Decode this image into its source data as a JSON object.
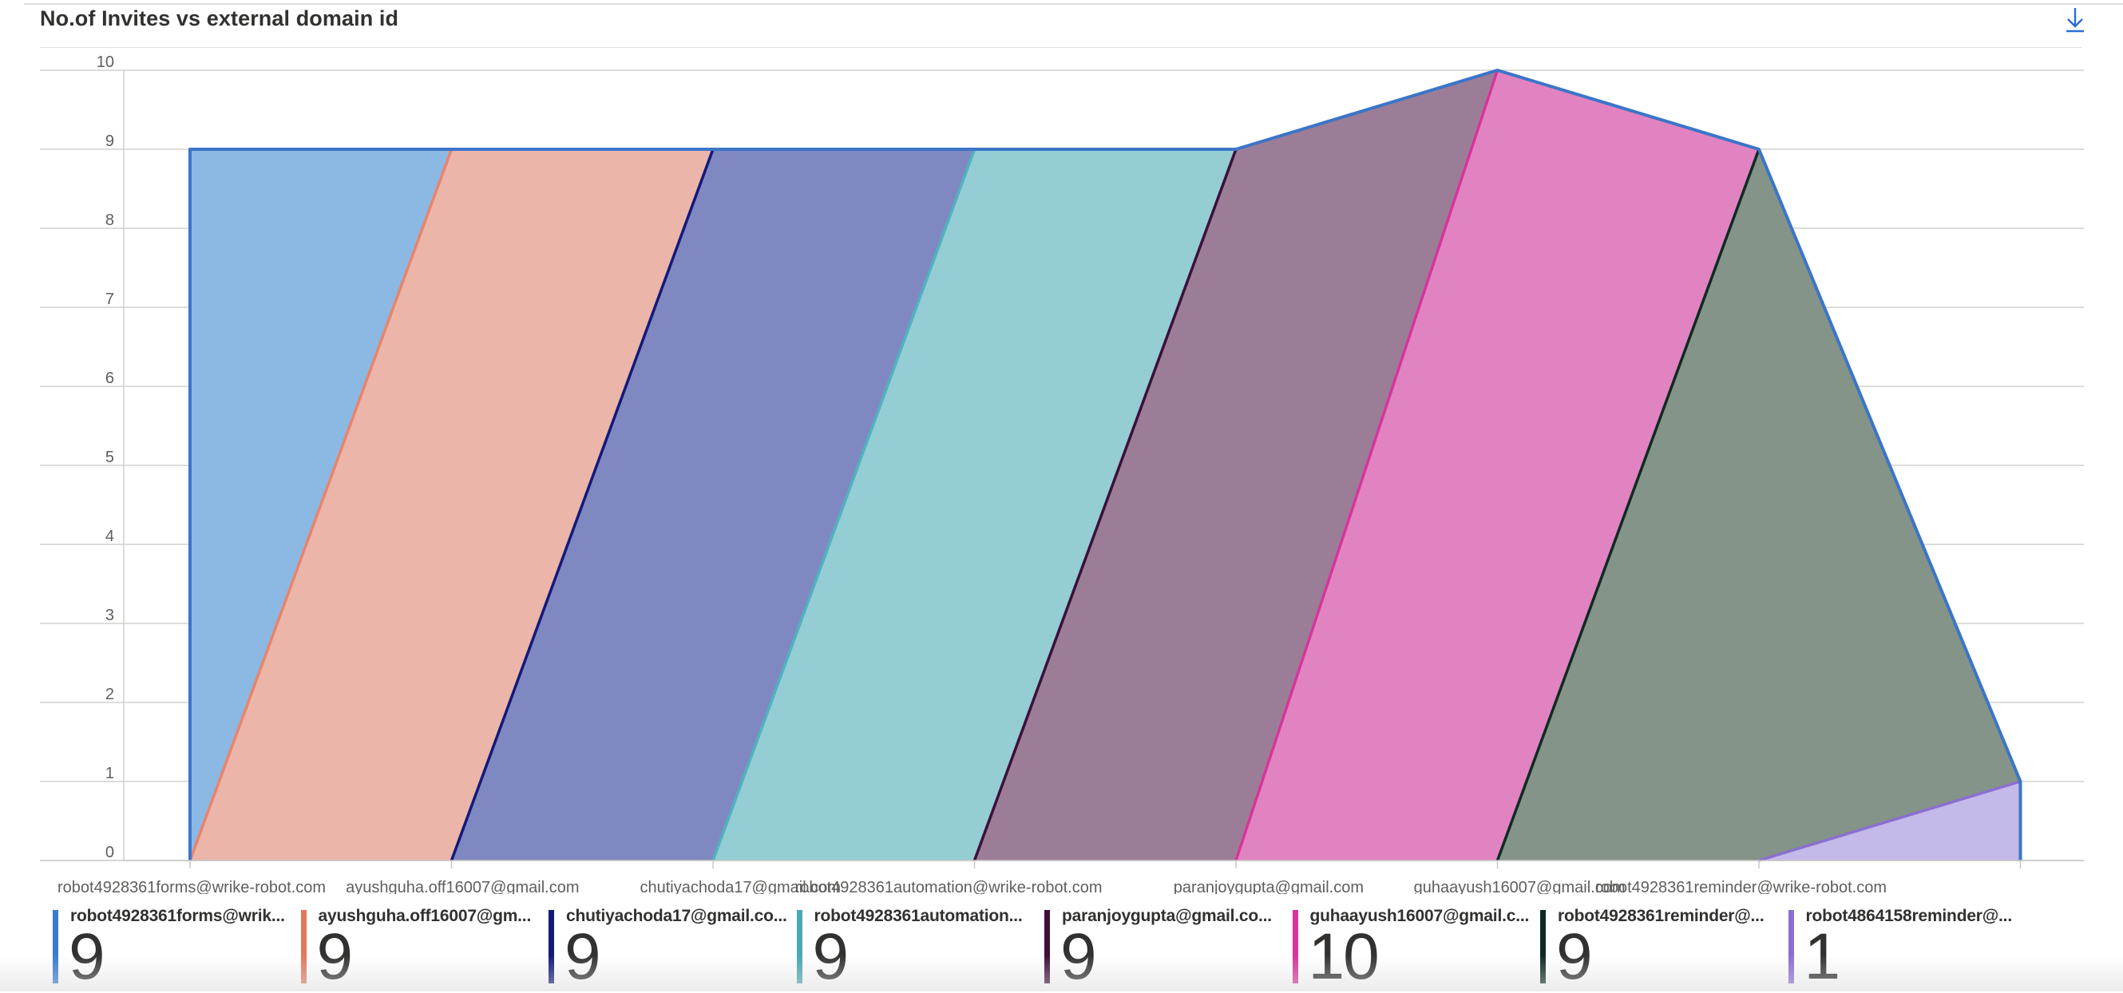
{
  "header": {
    "title": "No.of Invites vs external domain id",
    "download_icon": "download-icon"
  },
  "chart_data": {
    "type": "area",
    "categories": [
      "robot4928361forms@wrike-robot.com",
      "ayushguha.off16007@gmail.com",
      "chutiyachoda17@gmail.com",
      "robot4928361automation@wrike-robot.com",
      "paranjoygupta@gmail.com",
      "guhaayush16007@gmail.com",
      "robot4928361reminder@wrike-robot.com",
      ""
    ],
    "values": [
      9,
      9,
      9,
      9,
      9,
      10,
      9,
      1
    ],
    "ylim": [
      0,
      10
    ],
    "yticks": [
      "0",
      "1",
      "2",
      "3",
      "4",
      "5",
      "6",
      "7",
      "8",
      "9",
      "10"
    ],
    "grid": true,
    "colors": [
      "#4a90d9",
      "#e8846b",
      "#12197a",
      "#4fb3bf",
      "#3d0f3a",
      "#d6359a",
      "#0e2a24",
      "#8a6fd1"
    ],
    "fills": [
      "#8cb8e4",
      "#ebb5a9",
      "#8088c2",
      "#94cdd4",
      "#9c7d97",
      "#e283c1",
      "#849488",
      "#c4b9e8"
    ],
    "outline_color": "#3b75c8",
    "legend": {
      "placement": "bottom",
      "items": [
        {
          "label": "robot4928361forms@wrik...",
          "value": "9",
          "color": "#3a7bd5"
        },
        {
          "label": "ayushguha.off16007@gm...",
          "value": "9",
          "color": "#e07a5f"
        },
        {
          "label": "chutiyachoda17@gmail.co...",
          "value": "9",
          "color": "#14197a"
        },
        {
          "label": "robot4928361automation...",
          "value": "9",
          "color": "#4aa8b0"
        },
        {
          "label": "paranjoygupta@gmail.co...",
          "value": "9",
          "color": "#3d0f3a"
        },
        {
          "label": "guhaayush16007@gmail.c...",
          "value": "10",
          "color": "#d6359a"
        },
        {
          "label": "robot4928361reminder@...",
          "value": "9",
          "color": "#0e2a24"
        },
        {
          "label": "robot4864158reminder@...",
          "value": "1",
          "color": "#8a6fd1"
        }
      ]
    }
  }
}
